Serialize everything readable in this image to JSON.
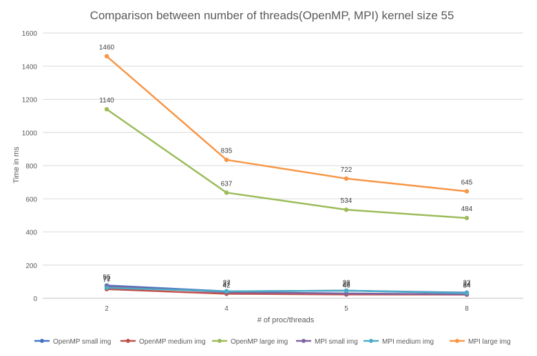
{
  "chart_data": {
    "type": "line",
    "title": "Comparison between number of threads(OpenMP, MPI) kernel size 55",
    "xlabel": "# of proc/threads",
    "ylabel": "Time in ms",
    "categories": [
      "2",
      "4",
      "5",
      "8"
    ],
    "ylim": [
      0,
      1600
    ],
    "yticks": [
      0,
      200,
      400,
      600,
      800,
      1000,
      1200,
      1400,
      1600
    ],
    "grid": true,
    "legend_position": "bottom",
    "series": [
      {
        "name": "OpenMP small img",
        "values": [
          77,
          42,
          46,
          34
        ],
        "color": "#4472C4"
      },
      {
        "name": "OpenMP medium img",
        "values": [
          55,
          27,
          23,
          22
        ],
        "color": "#C0504D"
      },
      {
        "name": "OpenMP large img",
        "values": [
          1140,
          637,
          534,
          484
        ],
        "color": "#9BBB59"
      },
      {
        "name": "MPI small img",
        "values": [
          72,
          37,
          29,
          24
        ],
        "color": "#8064A2"
      },
      {
        "name": "MPI medium img",
        "values": [
          63,
          42,
          46,
          31
        ],
        "color": "#4BACC6"
      },
      {
        "name": "MPI large img",
        "values": [
          1460,
          835,
          722,
          645
        ],
        "color": "#F79646"
      }
    ],
    "data_labels": {
      "OpenMP large img": [
        "1140",
        "637",
        "534",
        "484"
      ],
      "MPI large img": [
        "1460",
        "835",
        "722",
        "645"
      ],
      "small_cluster": [
        [
          "77",
          "72",
          "55"
        ],
        [
          "42",
          "37",
          "27"
        ],
        [
          "46",
          "29",
          "23"
        ],
        [
          "34",
          "24",
          "22"
        ]
      ]
    }
  }
}
